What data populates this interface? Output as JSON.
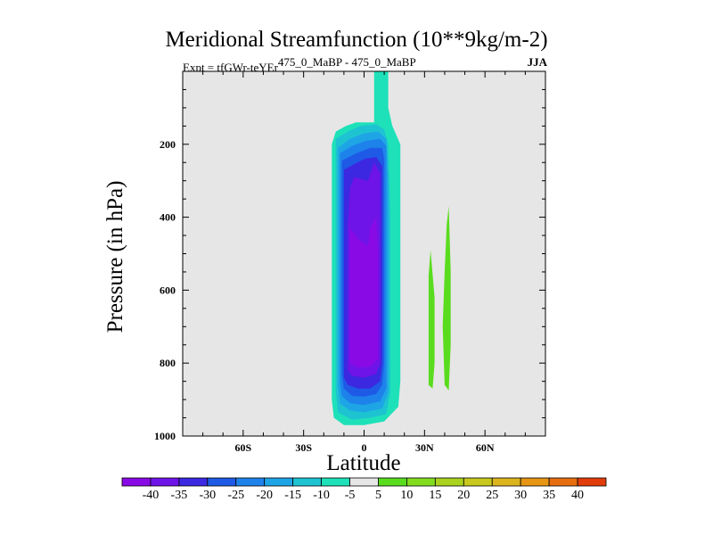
{
  "chart_data": {
    "type": "contour",
    "title": "Meridional Streamfunction (10**9kg/m-2)",
    "subtitle_expt": "Expt = tfGWr-teYEr",
    "subtitle_diff": "475_0_MaBP - 475_0_MaBP",
    "season": "JJA",
    "xlabel": "Latitude",
    "ylabel": "Pressure (in hPa)",
    "xlim": [
      -90,
      90
    ],
    "ylim": [
      1000,
      0
    ],
    "x_ticks": [
      {
        "value": -60,
        "label": "60S"
      },
      {
        "value": -30,
        "label": "30S"
      },
      {
        "value": 0,
        "label": "0"
      },
      {
        "value": 30,
        "label": "30N"
      },
      {
        "value": 60,
        "label": "60N"
      }
    ],
    "y_ticks": [
      {
        "value": 200,
        "label": "200"
      },
      {
        "value": 400,
        "label": "400"
      },
      {
        "value": 600,
        "label": "600"
      },
      {
        "value": 800,
        "label": "800"
      },
      {
        "value": 1000,
        "label": "1000"
      }
    ],
    "background_color": "#e6e6e6",
    "colorbar": {
      "labels": [
        "-40",
        "-35",
        "-30",
        "-25",
        "-20",
        "-15",
        "-10",
        "-5",
        "5",
        "10",
        "15",
        "20",
        "25",
        "30",
        "35",
        "40"
      ],
      "colors": [
        "#8a0ae6",
        "#6e14e8",
        "#3c28e0",
        "#1e5ae6",
        "#1e82eb",
        "#1ea5e6",
        "#1ec3d2",
        "#1ee1b9",
        "#e6e6e6",
        "#5adc1e",
        "#82dc1e",
        "#aad21e",
        "#c8c81e",
        "#dcb41e",
        "#e69614",
        "#e66e0f",
        "#e13c0a"
      ]
    },
    "contour_regions": [
      {
        "level": "-5",
        "color": "#1ee1b9",
        "polygon": [
          [
            5,
            0
          ],
          [
            12,
            0
          ],
          [
            12,
            100
          ],
          [
            14,
            150
          ],
          [
            18,
            200
          ],
          [
            18,
            300
          ],
          [
            18,
            500
          ],
          [
            18,
            700
          ],
          [
            18,
            850
          ],
          [
            17,
            920
          ],
          [
            10,
            960
          ],
          [
            0,
            970
          ],
          [
            -10,
            970
          ],
          [
            -15,
            950
          ],
          [
            -16,
            900
          ],
          [
            -16,
            700
          ],
          [
            -16,
            500
          ],
          [
            -16,
            300
          ],
          [
            -16,
            200
          ],
          [
            -14,
            165
          ],
          [
            -9,
            150
          ],
          [
            -4,
            140
          ],
          [
            5,
            140
          ]
        ]
      },
      {
        "level": "-10",
        "color": "#1ec3d2",
        "polygon": [
          [
            -14,
            185
          ],
          [
            -8,
            165
          ],
          [
            -2,
            150
          ],
          [
            6,
            145
          ],
          [
            10,
            160
          ],
          [
            12,
            200
          ],
          [
            13,
            400
          ],
          [
            13,
            700
          ],
          [
            13,
            880
          ],
          [
            11,
            940
          ],
          [
            3,
            950
          ],
          [
            -6,
            955
          ],
          [
            -13,
            935
          ],
          [
            -14,
            880
          ],
          [
            -14,
            500
          ]
        ]
      },
      {
        "level": "-15",
        "color": "#1ea5e6",
        "polygon": [
          [
            -13,
            210
          ],
          [
            -7,
            185
          ],
          [
            0,
            170
          ],
          [
            7,
            165
          ],
          [
            11,
            185
          ],
          [
            12,
            300
          ],
          [
            12,
            700
          ],
          [
            12,
            880
          ],
          [
            9,
            925
          ],
          [
            0,
            935
          ],
          [
            -7,
            930
          ],
          [
            -12,
            910
          ],
          [
            -13,
            860
          ],
          [
            -13,
            500
          ]
        ]
      },
      {
        "level": "-20",
        "color": "#1e82eb",
        "polygon": [
          [
            -12,
            225
          ],
          [
            -6,
            205
          ],
          [
            1,
            190
          ],
          [
            8,
            185
          ],
          [
            11,
            205
          ],
          [
            11,
            400
          ],
          [
            11,
            700
          ],
          [
            11,
            870
          ],
          [
            8,
            905
          ],
          [
            0,
            915
          ],
          [
            -7,
            910
          ],
          [
            -11,
            890
          ],
          [
            -12,
            850
          ],
          [
            -12,
            500
          ]
        ]
      },
      {
        "level": "-25",
        "color": "#1e5ae6",
        "polygon": [
          [
            -11,
            245
          ],
          [
            -4,
            225
          ],
          [
            3,
            210
          ],
          [
            9,
            210
          ],
          [
            10,
            240
          ],
          [
            10,
            500
          ],
          [
            10,
            800
          ],
          [
            9,
            860
          ],
          [
            6,
            885
          ],
          [
            0,
            892
          ],
          [
            -6,
            890
          ],
          [
            -10,
            870
          ],
          [
            -11,
            830
          ],
          [
            -11,
            500
          ]
        ]
      },
      {
        "level": "-30",
        "color": "#3c28e0",
        "polygon": [
          [
            -10,
            270
          ],
          [
            -5,
            255
          ],
          [
            0,
            240
          ],
          [
            6,
            235
          ],
          [
            9,
            260
          ],
          [
            9,
            500
          ],
          [
            9,
            800
          ],
          [
            8,
            850
          ],
          [
            3,
            870
          ],
          [
            -3,
            870
          ],
          [
            -8,
            860
          ],
          [
            -10,
            840
          ],
          [
            -10,
            500
          ]
        ]
      },
      {
        "level": "-35",
        "color": "#6e14e8",
        "polygon": [
          [
            -8,
            420
          ],
          [
            -7,
            320
          ],
          [
            -5,
            290
          ],
          [
            2,
            300
          ],
          [
            5,
            250
          ],
          [
            8,
            280
          ],
          [
            8,
            500
          ],
          [
            8,
            800
          ],
          [
            6,
            830
          ],
          [
            0,
            840
          ],
          [
            -6,
            835
          ],
          [
            -8,
            820
          ],
          [
            -8,
            600
          ]
        ]
      },
      {
        "level": "-40",
        "color": "#8a0ae6",
        "polygon": [
          [
            -7,
            430
          ],
          [
            -3,
            460
          ],
          [
            2,
            480
          ],
          [
            3,
            430
          ],
          [
            6,
            400
          ],
          [
            7,
            500
          ],
          [
            7,
            700
          ],
          [
            7,
            790
          ],
          [
            3,
            810
          ],
          [
            -3,
            812
          ],
          [
            -7,
            800
          ],
          [
            -7,
            600
          ]
        ]
      },
      {
        "level": "10",
        "color": "#5adc1e",
        "polygon": [
          [
            33,
            490
          ],
          [
            35,
            620
          ],
          [
            35,
            800
          ],
          [
            34,
            870
          ],
          [
            32,
            860
          ],
          [
            32,
            700
          ],
          [
            32,
            560
          ]
        ]
      },
      {
        "level": "10",
        "color": "#5adc1e",
        "polygon": [
          [
            42,
            370
          ],
          [
            43,
            550
          ],
          [
            43,
            750
          ],
          [
            42,
            875
          ],
          [
            40,
            860
          ],
          [
            39,
            700
          ],
          [
            40,
            550
          ],
          [
            41,
            420
          ]
        ]
      }
    ]
  }
}
